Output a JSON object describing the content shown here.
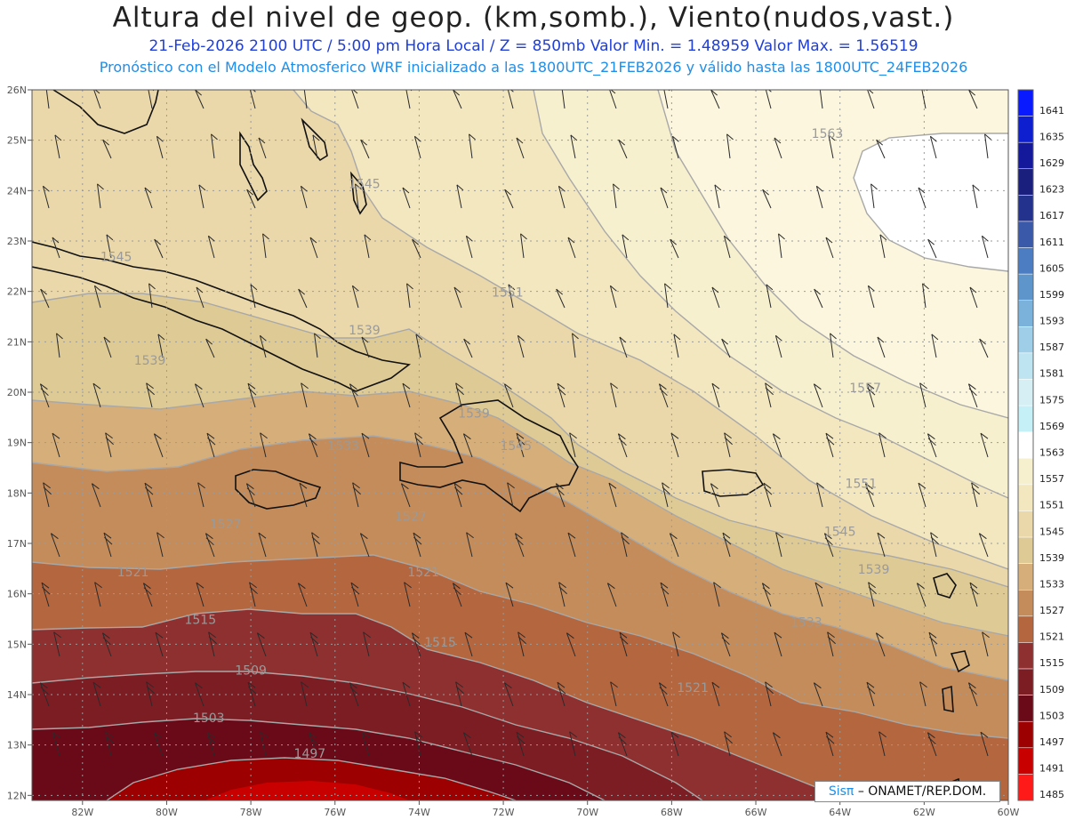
{
  "title": "Altura del nivel de geop. (km,somb.), Viento(nudos,vast.)",
  "subtitle_line1": "21-Feb-2026  2100 UTC / 5:00 pm Hora Local / Z = 850mb     Valor Min. = 1.48959  Valor Max. = 1.56519",
  "subtitle_line2": "Pronóstico con el Modelo Atmosferico WRF inicializado a las 1800UTC_21FEB2026 y válido hasta las  1800UTC_24FEB2026",
  "credit": {
    "brand": "Sisπ",
    "text": "– ONAMET/REP.DOM."
  },
  "lat_labels": [
    "26N",
    "25N",
    "24N",
    "23N",
    "22N",
    "21N",
    "20N",
    "19N",
    "18N",
    "17N",
    "16N",
    "15N",
    "14N",
    "13N",
    "12N"
  ],
  "lon_labels": [
    "82W",
    "80W",
    "78W",
    "76W",
    "74W",
    "72W",
    "70W",
    "68W",
    "66W",
    "64W",
    "62W",
    "60W"
  ],
  "colorbar": {
    "levels": [
      "1641",
      "1635",
      "1629",
      "1623",
      "1617",
      "1611",
      "1605",
      "1599",
      "1593",
      "1587",
      "1581",
      "1575",
      "1569",
      "1563",
      "1557",
      "1551",
      "1545",
      "1539",
      "1533",
      "1527",
      "1521",
      "1515",
      "1509",
      "1503",
      "1497",
      "1491",
      "1485"
    ],
    "colors": [
      "#0a1aff",
      "#0e1fd0",
      "#13199a",
      "#1a1f7e",
      "#23338d",
      "#3a59a8",
      "#4c7cc2",
      "#5e96cc",
      "#7ab2dc",
      "#9fcfe8",
      "#bde4f0",
      "#d6eff5",
      "#c6f0f8",
      "#ffffff",
      "#f7f0cf",
      "#f3e7c0",
      "#ead8aa",
      "#deca95",
      "#d6ae7a",
      "#c48c5a",
      "#b4663f",
      "#8f3030",
      "#7c1d24",
      "#6a0a18",
      "#9c0000",
      "#c80000",
      "#ff1a1a"
    ]
  },
  "contour_labels": [
    {
      "text": "1563",
      "lon": -64.3,
      "lat": 25.05
    },
    {
      "text": "1557",
      "lon": -63.4,
      "lat": 20.0
    },
    {
      "text": "1551",
      "lon": -71.9,
      "lat": 21.9
    },
    {
      "text": "1551",
      "lon": -63.5,
      "lat": 18.1
    },
    {
      "text": "1545",
      "lon": -75.3,
      "lat": 24.05
    },
    {
      "text": "1545",
      "lon": -81.2,
      "lat": 22.6
    },
    {
      "text": "1545",
      "lon": -71.7,
      "lat": 18.85
    },
    {
      "text": "1545",
      "lon": -64.0,
      "lat": 17.15
    },
    {
      "text": "1539",
      "lon": -75.3,
      "lat": 21.15
    },
    {
      "text": "1539",
      "lon": -80.4,
      "lat": 20.55
    },
    {
      "text": "1539",
      "lon": -72.7,
      "lat": 19.5
    },
    {
      "text": "1539",
      "lon": -63.2,
      "lat": 16.4
    },
    {
      "text": "1533",
      "lon": -75.8,
      "lat": 18.85
    },
    {
      "text": "1533",
      "lon": -64.8,
      "lat": 15.35
    },
    {
      "text": "1527",
      "lon": -78.6,
      "lat": 17.3
    },
    {
      "text": "1527",
      "lon": -74.2,
      "lat": 17.45
    },
    {
      "text": "1521",
      "lon": -80.8,
      "lat": 16.35
    },
    {
      "text": "1521",
      "lon": -73.9,
      "lat": 16.35
    },
    {
      "text": "1521",
      "lon": -67.5,
      "lat": 14.05
    },
    {
      "text": "1515",
      "lon": -79.2,
      "lat": 15.4
    },
    {
      "text": "1515",
      "lon": -73.5,
      "lat": 14.95
    },
    {
      "text": "1509",
      "lon": -78.0,
      "lat": 14.4
    },
    {
      "text": "1503",
      "lon": -79.0,
      "lat": 13.45
    },
    {
      "text": "1497",
      "lon": -76.6,
      "lat": 12.75
    }
  ]
}
